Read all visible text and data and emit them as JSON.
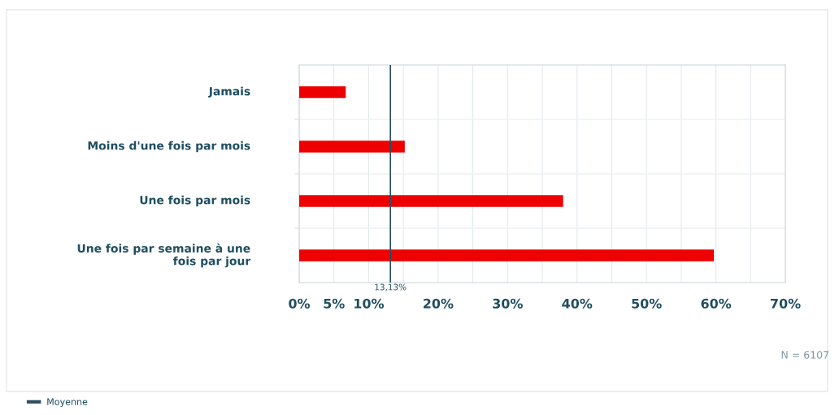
{
  "chart_data": {
    "type": "bar",
    "orientation": "horizontal",
    "categories": [
      "Jamais",
      "Moins d'une fois par mois",
      "Une fois par mois",
      "Une fois par semaine à une\nfois par jour"
    ],
    "values": [
      6.7,
      15.2,
      38,
      59.7
    ],
    "color": "#ee0000",
    "xlim": [
      0,
      70
    ],
    "xticks": [
      {
        "value": 0,
        "label": "0%"
      },
      {
        "value": 5,
        "label": "5%"
      },
      {
        "value": 10,
        "label": "10%"
      },
      {
        "value": 15,
        "label": null
      },
      {
        "value": 20,
        "label": "20%"
      },
      {
        "value": 25,
        "label": null
      },
      {
        "value": 30,
        "label": "30%"
      },
      {
        "value": 35,
        "label": null
      },
      {
        "value": 40,
        "label": "40%"
      },
      {
        "value": 45,
        "label": null
      },
      {
        "value": 50,
        "label": "50%"
      },
      {
        "value": 55,
        "label": null
      },
      {
        "value": 60,
        "label": "60%"
      },
      {
        "value": 65,
        "label": null
      },
      {
        "value": 70,
        "label": "70%"
      }
    ],
    "ref_lines": [
      {
        "axis": "x",
        "value": 13.13,
        "label": "Moyenne",
        "color": "#2b4f63"
      }
    ],
    "annotations": [
      "13,13%",
      "N = 6107"
    ],
    "grid": true,
    "legend": "bottom left"
  }
}
